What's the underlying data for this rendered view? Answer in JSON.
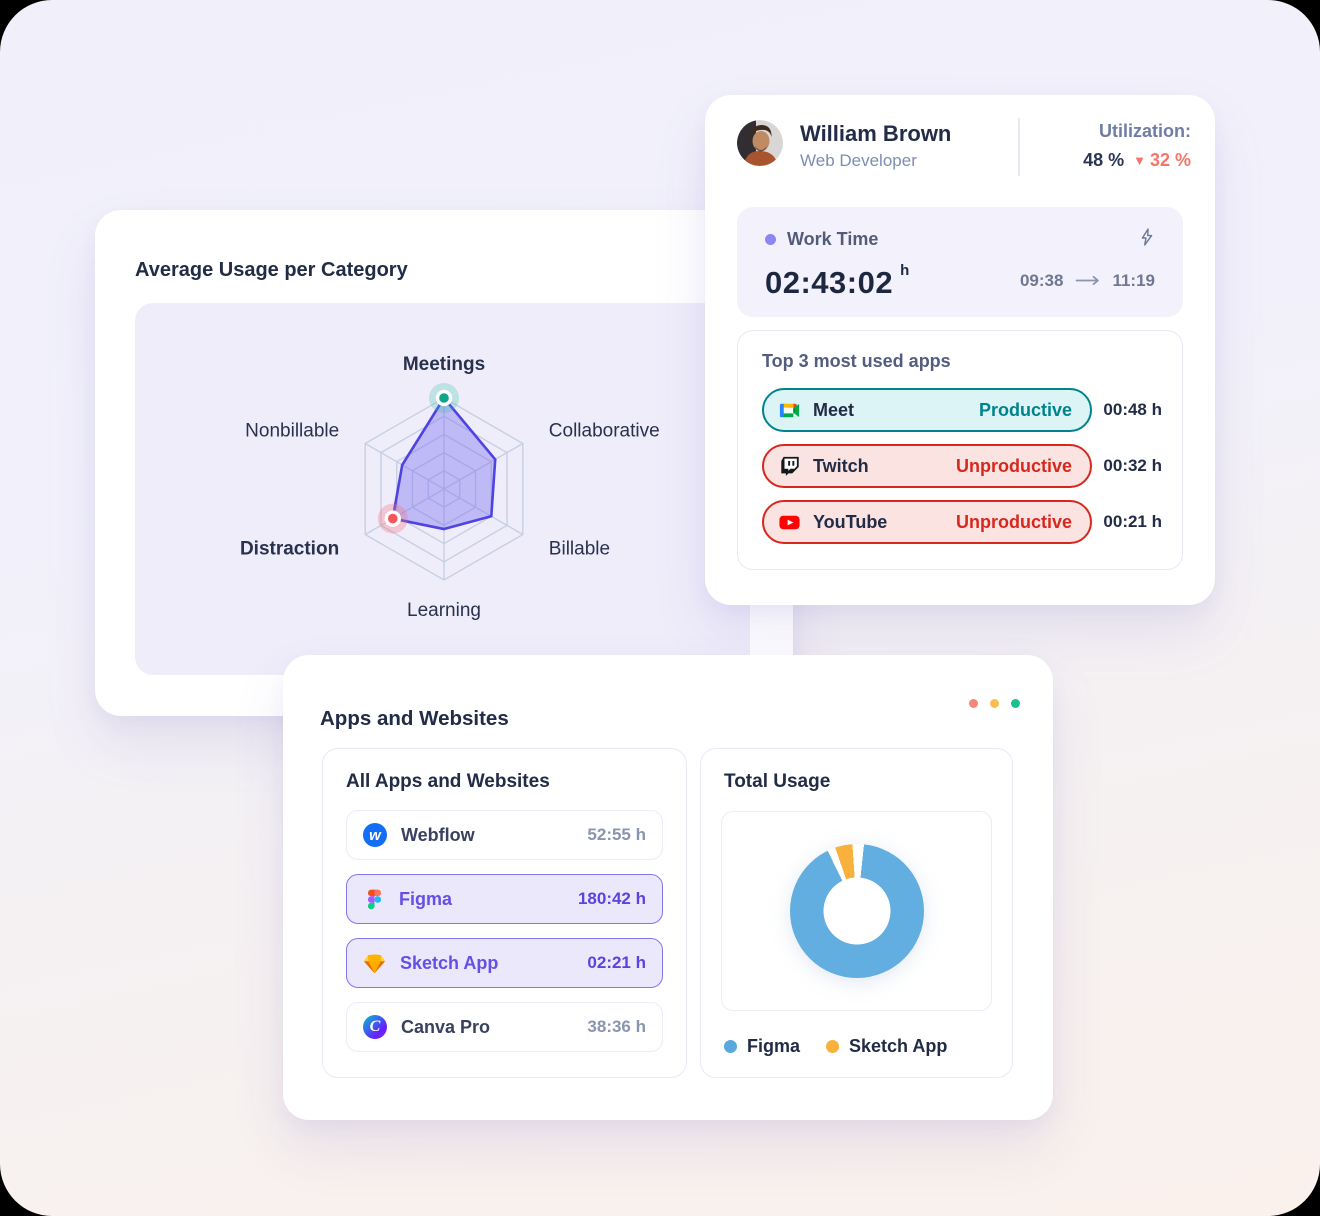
{
  "radar_card": {
    "title": "Average Usage per Category"
  },
  "profile_card": {
    "name": "William Brown",
    "role": "Web Developer",
    "utilization": {
      "label": "Utilization:",
      "value": "48 %",
      "delta_icon": "▼",
      "delta": "32 %"
    },
    "work_time": {
      "label": "Work Time",
      "value": "02:43:02",
      "unit": "h",
      "start": "09:38",
      "end": "11:19"
    },
    "top_apps": {
      "title": "Top 3 most used apps",
      "items": [
        {
          "name": "Meet",
          "status": "Productive",
          "time": "00:48 h",
          "tone": "productive"
        },
        {
          "name": "Twitch",
          "status": "Unproductive",
          "time": "00:32 h",
          "tone": "unproductive"
        },
        {
          "name": "YouTube",
          "status": "Unproductive",
          "time": "00:21 h",
          "tone": "unproductive"
        }
      ]
    }
  },
  "apps_card": {
    "title": "Apps and Websites",
    "menu_dots": [
      "#F4867E",
      "#F8BE56",
      "#1DBE8F"
    ],
    "list": {
      "title": "All Apps and Websites",
      "items": [
        {
          "name": "Webflow",
          "time": "52:55 h",
          "highlighted": false
        },
        {
          "name": "Figma",
          "time": "180:42 h",
          "highlighted": true
        },
        {
          "name": "Sketch App",
          "time": "02:21 h",
          "highlighted": true
        },
        {
          "name": "Canva Pro",
          "time": "38:36 h",
          "highlighted": false
        }
      ]
    },
    "usage": {
      "title": "Total Usage",
      "legend": [
        {
          "label": "Figma",
          "color": "#5BA8DF"
        },
        {
          "label": "Sketch App",
          "color": "#F8B13C"
        }
      ]
    }
  },
  "icons": {
    "webflow_glyph": "w",
    "canva_glyph": "C"
  },
  "colors": {
    "work_dot": "#8B87F2",
    "delta_red": "#F4756B",
    "productive": "#00838C",
    "unproductive": "#D6281E",
    "donut_blue": "#62AEE1",
    "donut_amber": "#F8B13C"
  },
  "chart_data": [
    {
      "type": "radar",
      "title": "Average Usage per Category",
      "max": 100,
      "rings": [
        20,
        40,
        60,
        80,
        100
      ],
      "grid_color": "#C7CFE3",
      "stroke": "#4F43E2",
      "fill": "rgba(124,114,240,0.42)",
      "axes": [
        {
          "label": "Meetings",
          "value": 100,
          "bold": true,
          "marker": {
            "color": "#0FA58B",
            "halo": "rgba(45,190,165,0.25)"
          }
        },
        {
          "label": "Collaborative",
          "value": 65,
          "bold": false
        },
        {
          "label": "Billable",
          "value": 60,
          "bold": false
        },
        {
          "label": "Learning",
          "value": 44,
          "bold": false
        },
        {
          "label": "Distraction",
          "value": 65,
          "bold": true,
          "marker": {
            "color": "#F5575C",
            "halo": "rgba(246,110,120,0.30)"
          }
        },
        {
          "label": "Nonbillable",
          "value": 53,
          "bold": false
        }
      ]
    },
    {
      "type": "donut",
      "title": "Total Usage",
      "slices": [
        {
          "label": "Figma",
          "value": "180:42 h",
          "color": "#62AEE1",
          "start_deg": 6,
          "end_deg": 334
        },
        {
          "label": "Sketch App",
          "value": "02:21 h",
          "color": "#F8B13C",
          "start_deg": 341,
          "end_deg": 356
        }
      ],
      "hole_ratio": 0.5,
      "legend_position": "bottom"
    }
  ]
}
